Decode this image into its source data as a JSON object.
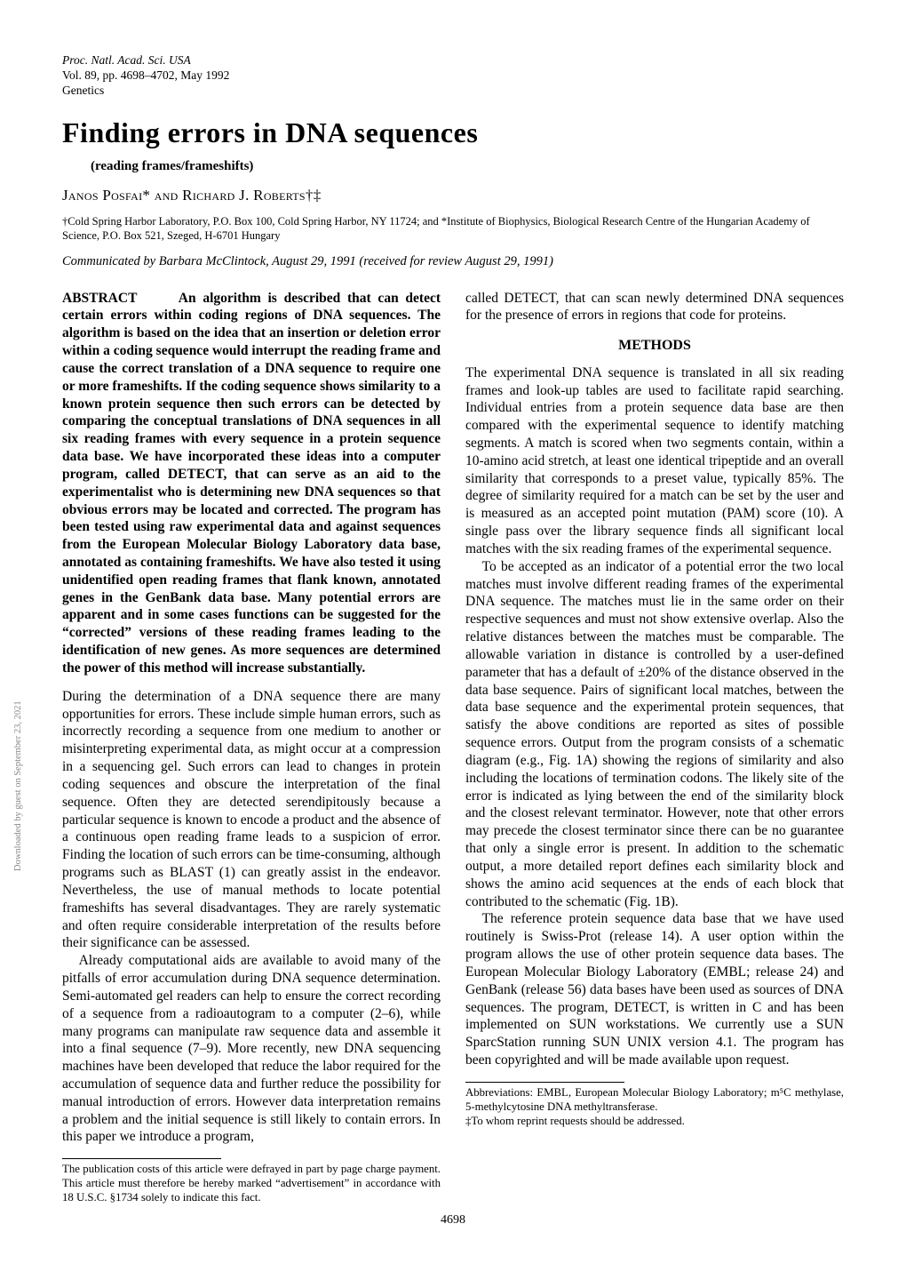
{
  "header": {
    "journal_line1": "Proc. Natl. Acad. Sci. USA",
    "journal_line2": "Vol. 89, pp. 4698–4702, May 1992",
    "section": "Genetics"
  },
  "title": "Finding errors in DNA sequences",
  "subtitle": "(reading frames/frameshifts)",
  "authors": "Janos Posfai* and Richard J. Roberts†‡",
  "affiliation": "†Cold Spring Harbor Laboratory, P.O. Box 100, Cold Spring Harbor, NY 11724; and *Institute of Biophysics, Biological Research Centre of the Hungarian Academy of Science, P.O. Box 521, Szeged, H-6701 Hungary",
  "communicated": "Communicated by Barbara McClintock, August 29, 1991 (received for review August 29, 1991)",
  "abstract_label": "ABSTRACT",
  "abstract_text": "An algorithm is described that can detect certain errors within coding regions of DNA sequences. The algorithm is based on the idea that an insertion or deletion error within a coding sequence would interrupt the reading frame and cause the correct translation of a DNA sequence to require one or more frameshifts. If the coding sequence shows similarity to a known protein sequence then such errors can be detected by comparing the conceptual translations of DNA sequences in all six reading frames with every sequence in a protein sequence data base. We have incorporated these ideas into a computer program, called DETECT, that can serve as an aid to the experimentalist who is determining new DNA sequences so that obvious errors may be located and corrected. The program has been tested using raw experimental data and against sequences from the European Molecular Biology Laboratory data base, annotated as containing frameshifts. We have also tested it using unidentified open reading frames that flank known, annotated genes in the GenBank data base. Many potential errors are apparent and in some cases functions can be suggested for the “corrected” versions of these reading frames leading to the identification of new genes. As more sequences are determined the power of this method will increase substantially.",
  "body": {
    "p1": "During the determination of a DNA sequence there are many opportunities for errors. These include simple human errors, such as incorrectly recording a sequence from one medium to another or misinterpreting experimental data, as might occur at a compression in a sequencing gel. Such errors can lead to changes in protein coding sequences and obscure the interpretation of the final sequence. Often they are detected serendipitously because a particular sequence is known to encode a product and the absence of a continuous open reading frame leads to a suspicion of error. Finding the location of such errors can be time-consuming, although programs such as BLAST (1) can greatly assist in the endeavor. Nevertheless, the use of manual methods to locate potential frameshifts has several disadvantages. They are rarely systematic and often require considerable interpretation of the results before their significance can be assessed.",
    "p2": "Already computational aids are available to avoid many of the pitfalls of error accumulation during DNA sequence determination. Semi-automated gel readers can help to ensure the correct recording of a sequence from a radioautogram to a computer (2–6), while many programs can manipulate raw sequence data and assemble it into a final sequence (7–9). More recently, new DNA sequencing machines have been developed that reduce the labor required for the accumulation of sequence data and further reduce the possibility for manual introduction of errors. However data interpretation remains a problem and the initial sequence is still likely to contain errors. In this paper we introduce a program,",
    "p2b": "called DETECT, that can scan newly determined DNA sequences for the presence of errors in regions that code for proteins.",
    "methods_head": "METHODS",
    "p3": "The experimental DNA sequence is translated in all six reading frames and look-up tables are used to facilitate rapid searching. Individual entries from a protein sequence data base are then compared with the experimental sequence to identify matching segments. A match is scored when two segments contain, within a 10-amino acid stretch, at least one identical tripeptide and an overall similarity that corresponds to a preset value, typically 85%. The degree of similarity required for a match can be set by the user and is measured as an accepted point mutation (PAM) score (10). A single pass over the library sequence finds all significant local matches with the six reading frames of the experimental sequence.",
    "p4": "To be accepted as an indicator of a potential error the two local matches must involve different reading frames of the experimental DNA sequence. The matches must lie in the same order on their respective sequences and must not show extensive overlap. Also the relative distances between the matches must be comparable. The allowable variation in distance is controlled by a user-defined parameter that has a default of ±20% of the distance observed in the data base sequence. Pairs of significant local matches, between the data base sequence and the experimental protein sequences, that satisfy the above conditions are reported as sites of possible sequence errors. Output from the program consists of a schematic diagram (e.g., Fig. 1A) showing the regions of similarity and also including the locations of termination codons. The likely site of the error is indicated as lying between the end of the similarity block and the closest relevant terminator. However, note that other errors may precede the closest terminator since there can be no guarantee that only a single error is present. In addition to the schematic output, a more detailed report defines each similarity block and shows the amino acid sequences at the ends of each block that contributed to the schematic (Fig. 1B).",
    "p5": "The reference protein sequence data base that we have used routinely is Swiss-Prot (release 14). A user option within the program allows the use of other protein sequence data bases. The European Molecular Biology Laboratory (EMBL; release 24) and GenBank (release 56) data bases have been used as sources of DNA sequences. The program, DETECT, is written in C and has been implemented on SUN workstations. We currently use a SUN SparcStation running SUN UNIX version 4.1. The program has been copyrighted and will be made available upon request."
  },
  "footnote_left": "The publication costs of this article were defrayed in part by page charge payment. This article must therefore be hereby marked “advertisement” in accordance with 18 U.S.C. §1734 solely to indicate this fact.",
  "footnote_right1": "Abbreviations: EMBL, European Molecular Biology Laboratory; m⁵C methylase, 5-methylcytosine DNA methyltransferase.",
  "footnote_right2": "‡To whom reprint requests should be addressed.",
  "page_number": "4698",
  "sidebar_text": "Downloaded by guest on September 23, 2021"
}
